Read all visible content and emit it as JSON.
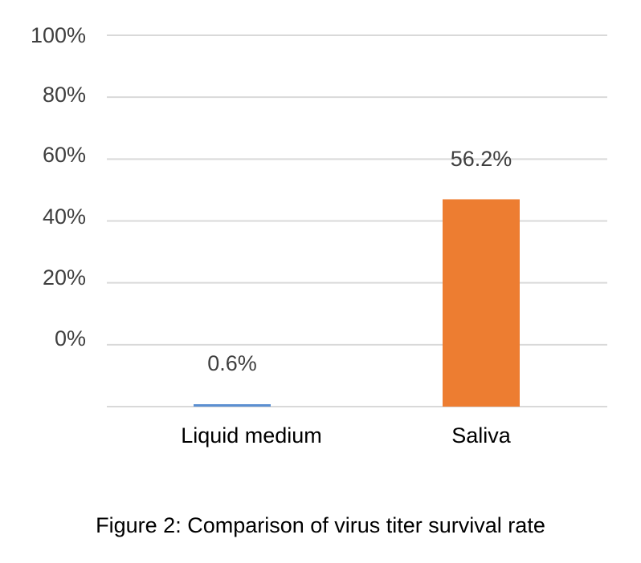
{
  "chart_data": {
    "type": "bar",
    "categories": [
      "Liquid medium",
      "Saliva"
    ],
    "values": [
      0.6,
      56.2
    ],
    "data_labels": [
      "0.6%",
      "56.2%"
    ],
    "colors": [
      "#5b8fd1",
      "#ed7d31"
    ],
    "y_ticks": [
      "0%",
      "20%",
      "40%",
      "60%",
      "80%",
      "100%"
    ],
    "ylim": [
      0,
      100
    ],
    "grid": true,
    "legend": "none"
  },
  "caption": "Figure 2: Comparison of virus titer survival rate"
}
